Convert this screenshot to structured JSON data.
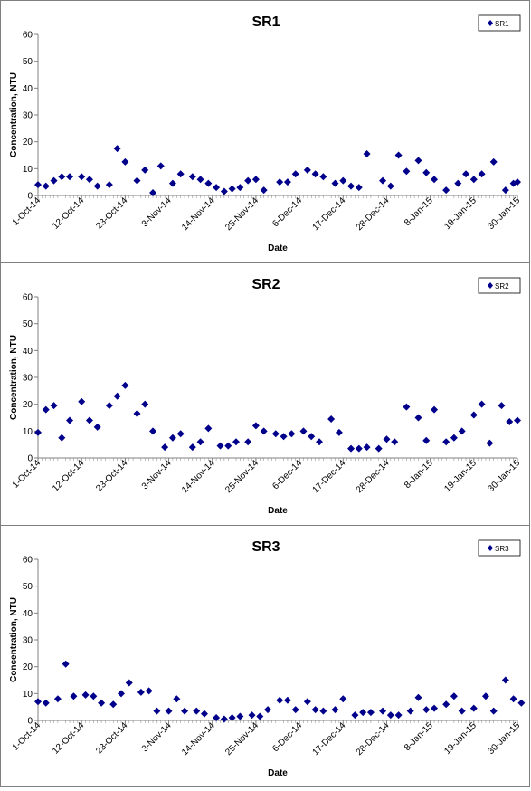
{
  "chart_data": [
    {
      "type": "scatter",
      "title": "SR1",
      "xlabel": "Date",
      "ylabel": "Concentration, NTU",
      "legend": [
        "SR1"
      ],
      "legend_position": "top-right",
      "ylim": [
        0,
        60
      ],
      "yticks": [
        0,
        10,
        20,
        30,
        40,
        50,
        60
      ],
      "xticks": [
        "1-Oct-14",
        "12-Oct-14",
        "23-Oct-14",
        "3-Nov-14",
        "14-Nov-14",
        "25-Nov-14",
        "6-Dec-14",
        "17-Dec-14",
        "28-Dec-14",
        "8-Jan-15",
        "19-Jan-15",
        "30-Jan-15"
      ],
      "grid": false,
      "marker_color": "#00008B",
      "series": [
        {
          "name": "SR1",
          "x": [
            "1-Oct-14",
            "3-Oct-14",
            "5-Oct-14",
            "7-Oct-14",
            "9-Oct-14",
            "12-Oct-14",
            "14-Oct-14",
            "16-Oct-14",
            "19-Oct-14",
            "21-Oct-14",
            "23-Oct-14",
            "26-Oct-14",
            "28-Oct-14",
            "30-Oct-14",
            "1-Nov-14",
            "4-Nov-14",
            "6-Nov-14",
            "9-Nov-14",
            "11-Nov-14",
            "13-Nov-14",
            "15-Nov-14",
            "17-Nov-14",
            "19-Nov-14",
            "21-Nov-14",
            "23-Nov-14",
            "25-Nov-14",
            "27-Nov-14",
            "1-Dec-14",
            "3-Dec-14",
            "5-Dec-14",
            "8-Dec-14",
            "10-Dec-14",
            "12-Dec-14",
            "15-Dec-14",
            "17-Dec-14",
            "19-Dec-14",
            "21-Dec-14",
            "23-Dec-14",
            "27-Dec-14",
            "29-Dec-14",
            "31-Dec-14",
            "2-Jan-15",
            "5-Jan-15",
            "7-Jan-15",
            "9-Jan-15",
            "12-Jan-15",
            "15-Jan-15",
            "17-Jan-15",
            "19-Jan-15",
            "21-Jan-15",
            "24-Jan-15",
            "27-Jan-15",
            "29-Jan-15",
            "30-Jan-15"
          ],
          "y": [
            4,
            3.5,
            5.5,
            7,
            7,
            7,
            6,
            3.5,
            4,
            17.5,
            12.5,
            5.5,
            9.5,
            1,
            11,
            4.5,
            8,
            7,
            6,
            4.5,
            3,
            1.5,
            2.5,
            3,
            5.5,
            6,
            2,
            5,
            5,
            8,
            9.5,
            8,
            7,
            4.5,
            5.5,
            3.5,
            3,
            15.5,
            5.5,
            3.5,
            15,
            9,
            13,
            8.5,
            6,
            2,
            4.5,
            8,
            6,
            8,
            12.5,
            2,
            4.5,
            5
          ]
        }
      ]
    },
    {
      "type": "scatter",
      "title": "SR2",
      "xlabel": "Date",
      "ylabel": "Concentration, NTU",
      "legend": [
        "SR2"
      ],
      "legend_position": "top-right",
      "ylim": [
        0,
        60
      ],
      "yticks": [
        0,
        10,
        20,
        30,
        40,
        50,
        60
      ],
      "xticks": [
        "1-Oct-14",
        "12-Oct-14",
        "23-Oct-14",
        "3-Nov-14",
        "14-Nov-14",
        "25-Nov-14",
        "6-Dec-14",
        "17-Dec-14",
        "28-Dec-14",
        "8-Jan-15",
        "19-Jan-15",
        "30-Jan-15"
      ],
      "grid": false,
      "marker_color": "#00008B",
      "series": [
        {
          "name": "SR2",
          "x": [
            "1-Oct-14",
            "3-Oct-14",
            "5-Oct-14",
            "7-Oct-14",
            "9-Oct-14",
            "12-Oct-14",
            "14-Oct-14",
            "16-Oct-14",
            "19-Oct-14",
            "21-Oct-14",
            "23-Oct-14",
            "26-Oct-14",
            "28-Oct-14",
            "30-Oct-14",
            "2-Nov-14",
            "4-Nov-14",
            "6-Nov-14",
            "9-Nov-14",
            "11-Nov-14",
            "13-Nov-14",
            "16-Nov-14",
            "18-Nov-14",
            "20-Nov-14",
            "23-Nov-14",
            "25-Nov-14",
            "27-Nov-14",
            "30-Nov-14",
            "2-Dec-14",
            "4-Dec-14",
            "7-Dec-14",
            "9-Dec-14",
            "11-Dec-14",
            "14-Dec-14",
            "16-Dec-14",
            "19-Dec-14",
            "21-Dec-14",
            "23-Dec-14",
            "26-Dec-14",
            "28-Dec-14",
            "30-Dec-14",
            "2-Jan-15",
            "5-Jan-15",
            "7-Jan-15",
            "9-Jan-15",
            "12-Jan-15",
            "14-Jan-15",
            "16-Jan-15",
            "19-Jan-15",
            "21-Jan-15",
            "23-Jan-15",
            "26-Jan-15",
            "28-Jan-15",
            "30-Jan-15"
          ],
          "y": [
            9.5,
            18,
            19.5,
            7.5,
            14,
            21,
            14,
            11.5,
            19.5,
            23,
            27,
            16.5,
            20,
            10,
            4,
            7.5,
            9,
            4,
            6,
            11,
            4.5,
            4.5,
            6,
            6,
            12,
            10,
            9,
            8,
            9,
            10,
            8,
            6,
            14.5,
            9.5,
            3.5,
            3.5,
            4,
            3.5,
            7,
            6,
            19,
            15,
            6.5,
            18,
            6,
            7.5,
            10,
            16,
            20,
            5.5,
            19.5,
            13.5,
            14
          ]
        }
      ]
    },
    {
      "type": "scatter",
      "title": "SR3",
      "xlabel": "Date",
      "ylabel": "Concentration, NTU",
      "legend": [
        "SR3"
      ],
      "legend_position": "top-right",
      "ylim": [
        0,
        60
      ],
      "yticks": [
        0,
        10,
        20,
        30,
        40,
        50,
        60
      ],
      "xticks": [
        "1-Oct-14",
        "12-Oct-14",
        "23-Oct-14",
        "3-Nov-14",
        "14-Nov-14",
        "25-Nov-14",
        "6-Dec-14",
        "17-Dec-14",
        "28-Dec-14",
        "8-Jan-15",
        "19-Jan-15",
        "30-Jan-15"
      ],
      "grid": false,
      "marker_color": "#00008B",
      "series": [
        {
          "name": "SR3",
          "x": [
            "1-Oct-14",
            "3-Oct-14",
            "6-Oct-14",
            "8-Oct-14",
            "10-Oct-14",
            "13-Oct-14",
            "15-Oct-14",
            "17-Oct-14",
            "20-Oct-14",
            "22-Oct-14",
            "24-Oct-14",
            "27-Oct-14",
            "29-Oct-14",
            "31-Oct-14",
            "3-Nov-14",
            "5-Nov-14",
            "7-Nov-14",
            "10-Nov-14",
            "12-Nov-14",
            "15-Nov-14",
            "17-Nov-14",
            "19-Nov-14",
            "21-Nov-14",
            "24-Nov-14",
            "26-Nov-14",
            "28-Nov-14",
            "1-Dec-14",
            "3-Dec-14",
            "5-Dec-14",
            "8-Dec-14",
            "10-Dec-14",
            "12-Dec-14",
            "15-Dec-14",
            "17-Dec-14",
            "20-Dec-14",
            "22-Dec-14",
            "24-Dec-14",
            "27-Dec-14",
            "29-Dec-14",
            "31-Dec-14",
            "3-Jan-15",
            "5-Jan-15",
            "7-Jan-15",
            "9-Jan-15",
            "12-Jan-15",
            "14-Jan-15",
            "16-Jan-15",
            "19-Jan-15",
            "22-Jan-15",
            "24-Jan-15",
            "27-Jan-15",
            "29-Jan-15",
            "31-Jan-15"
          ],
          "y": [
            7,
            6.5,
            8,
            21,
            9,
            9.5,
            9,
            6.5,
            6,
            10,
            14,
            10.5,
            11,
            3.5,
            3.5,
            8,
            3.5,
            3.5,
            2.5,
            1,
            0.5,
            1,
            1.5,
            2,
            1.5,
            4,
            7.5,
            7.5,
            4,
            7,
            4,
            3.5,
            4,
            8,
            2,
            3,
            3,
            3.5,
            2,
            2,
            3.5,
            8.5,
            4,
            4.5,
            6,
            9,
            3.5,
            4.5,
            9,
            3.5,
            15,
            8,
            6.5
          ]
        }
      ]
    }
  ]
}
